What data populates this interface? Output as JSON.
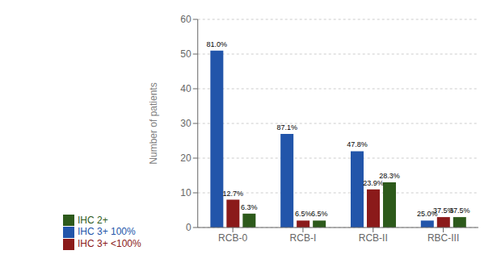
{
  "chart_data": {
    "type": "bar",
    "categories": [
      "RCB-0",
      "RCB-I",
      "RCB-II",
      "RBC-III"
    ],
    "series": [
      {
        "name": "IHC 3+ 100%",
        "color": "#2255aa",
        "values": [
          51,
          27,
          22,
          2
        ],
        "annotations": [
          "81.0%",
          "87.1%",
          "47.8%",
          "25.0%"
        ]
      },
      {
        "name": "IHC 3+ <100%",
        "color": "#8b1a1a",
        "values": [
          8,
          2,
          11,
          3
        ],
        "annotations": [
          "12.7%",
          "6.5%",
          "23.9%",
          "37.5%"
        ]
      },
      {
        "name": "IHC 2+",
        "color": "#2d5a1b",
        "values": [
          4,
          2,
          13,
          3
        ],
        "annotations": [
          "6.3%",
          "6.5%",
          "28.3%",
          "37.5%"
        ]
      }
    ],
    "ylabel": "Number of patients",
    "ylim": [
      0,
      60
    ],
    "yticks": [
      0,
      10,
      20,
      30,
      40,
      50,
      60
    ],
    "grid": true,
    "legend": "bottom left"
  }
}
